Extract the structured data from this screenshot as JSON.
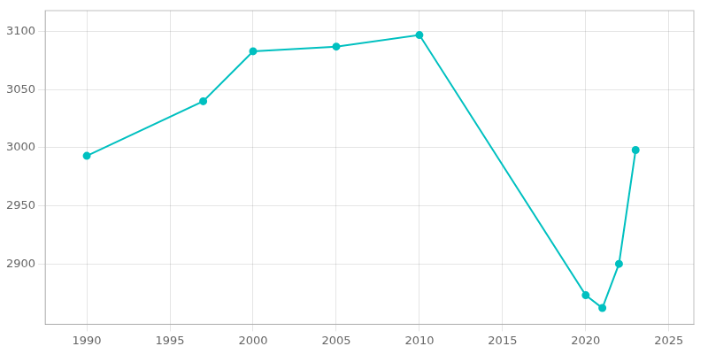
{
  "chart_data": {
    "type": "line",
    "x": [
      1990,
      1997,
      2000,
      2005,
      2010,
      2020,
      2021,
      2022,
      2023
    ],
    "values": [
      2993,
      3040,
      3083,
      3087,
      3097,
      2873,
      2862,
      2900,
      2998
    ],
    "color": "#00c0c0",
    "marker": "circle",
    "xlim": [
      1987.5,
      2026.5
    ],
    "xticks": [
      1990,
      1995,
      2000,
      2005,
      2010,
      2015,
      2020,
      2025
    ],
    "ylim": [
      2848,
      3118
    ],
    "yticks": [
      2900,
      2950,
      3000,
      3050,
      3100
    ],
    "grid": true
  }
}
